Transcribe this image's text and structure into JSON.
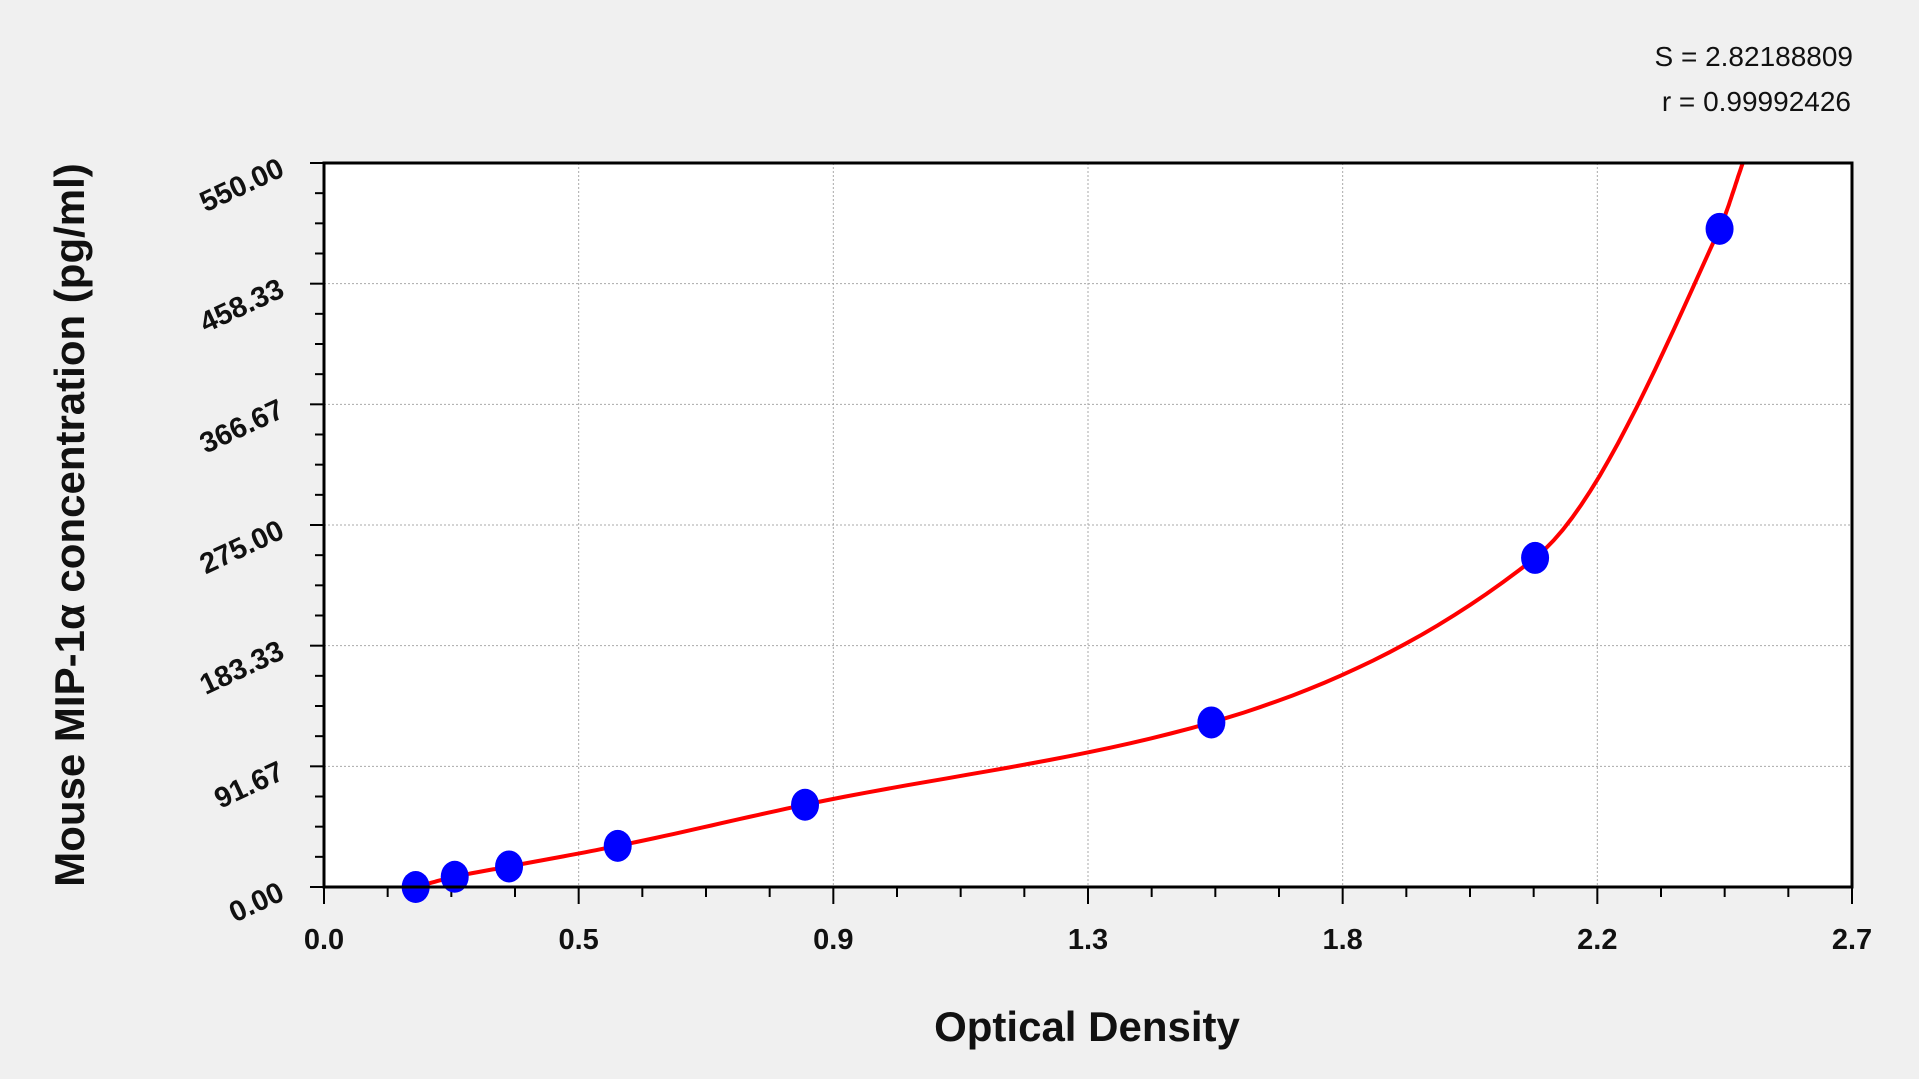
{
  "chart_data": {
    "type": "scatter",
    "title": "",
    "xlabel": "Optical Density",
    "ylabel": "Mouse MIP-1α concentration (pg/ml)",
    "xlim": [
      0,
      2.7
    ],
    "ylim": [
      0,
      550
    ],
    "x_ticks": [
      0,
      0.45,
      0.9,
      1.35,
      1.8,
      2.25,
      2.7
    ],
    "x_tick_labels": [
      "0.0",
      "0.5",
      "0.9",
      "1.3",
      "1.8",
      "2.2",
      "2.7"
    ],
    "y_ticks": [
      0,
      91.67,
      183.33,
      275,
      366.67,
      458.33,
      550
    ],
    "y_tick_labels": [
      "0.00",
      "91.67",
      "183.33",
      "275.00",
      "366.67",
      "458.33",
      "550.00"
    ],
    "grid": true,
    "series": [
      {
        "x": [
          0.162,
          0.231,
          0.327,
          0.519,
          0.85,
          1.568,
          2.14,
          2.466
        ],
        "y": [
          0,
          7.8,
          15.6,
          31.25,
          62.5,
          125,
          250,
          500
        ],
        "marker_color": "#0000ff"
      }
    ],
    "fit_curve": {
      "color": "#ff0000",
      "x_end": 2.507
    },
    "annotations": [
      "S = 2.82188809",
      "r = 0.99992426"
    ]
  }
}
